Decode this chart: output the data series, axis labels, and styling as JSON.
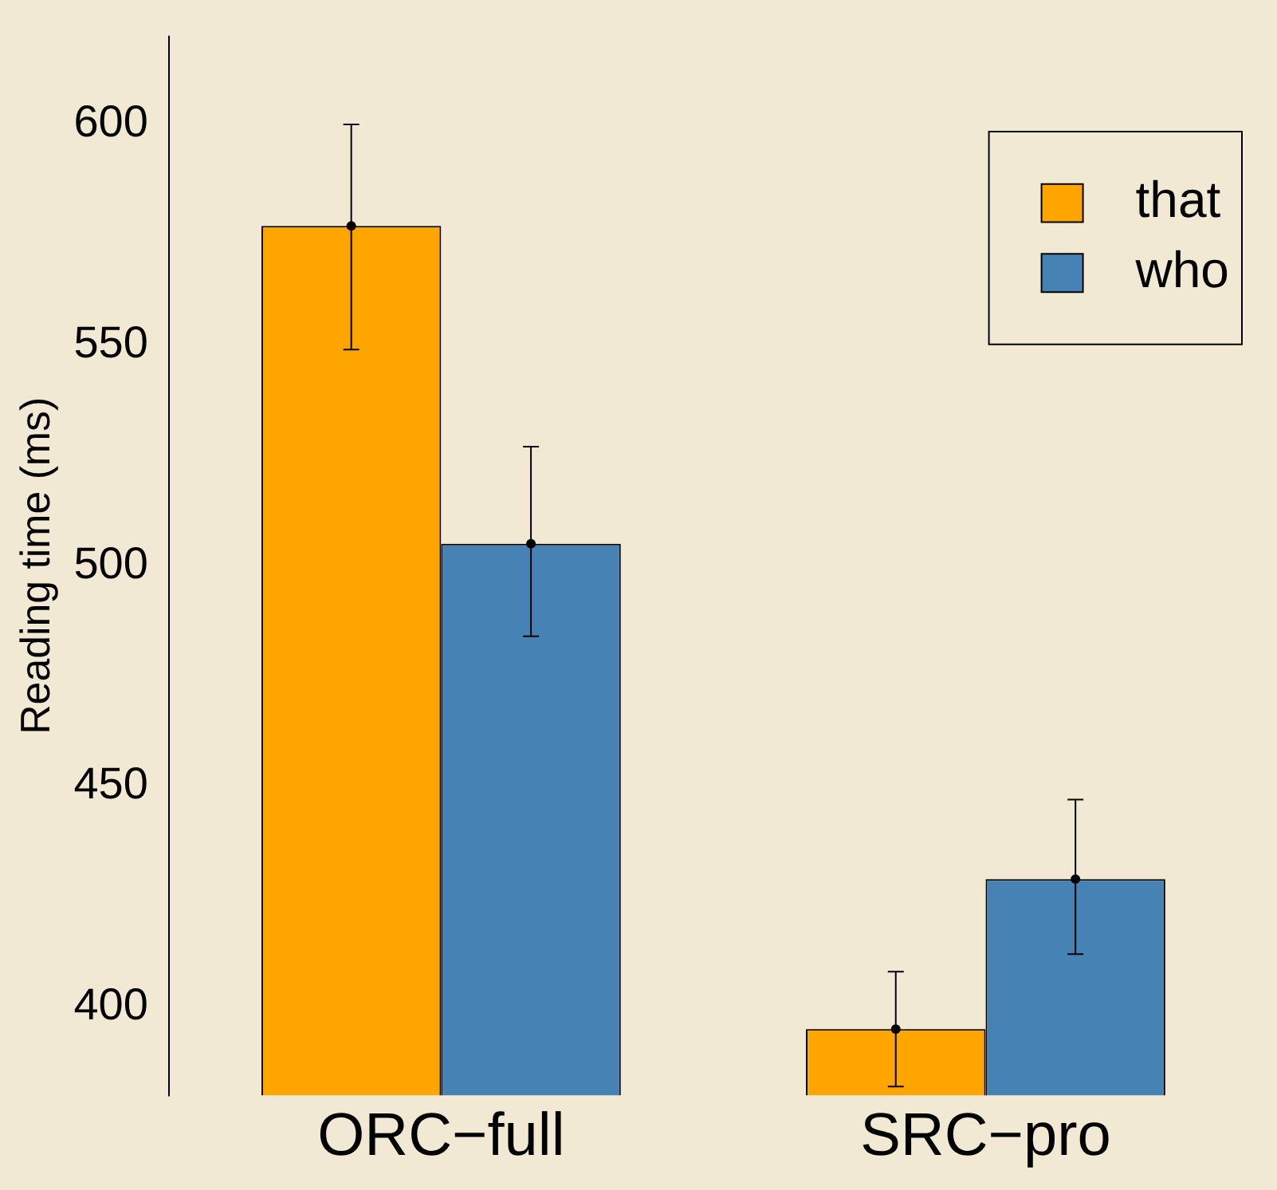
{
  "chart_data": {
    "type": "bar",
    "ylabel": "Reading time (ms)",
    "categories": [
      "ORC−full",
      "SRC−pro"
    ],
    "series": [
      {
        "name": "that",
        "color": "#ffa500",
        "values": [
          577,
          395
        ],
        "errors": [
          [
            549,
            600
          ],
          [
            382,
            408
          ]
        ]
      },
      {
        "name": "who",
        "color": "#4682b4",
        "values": [
          505,
          429
        ],
        "errors": [
          [
            484,
            527
          ],
          [
            412,
            447
          ]
        ]
      },
      {
        "type": "scatter",
        "color": "#000000",
        "x": [
          "ORC−full",
          "SRC−pro"
        ],
        "values": [
          577,
          395
        ],
        "marker": "circle"
      },
      {
        "type": "scatter",
        "color": "#000000",
        "x": [
          "ORC−full",
          "SRC−pro"
        ],
        "values": [
          505,
          429
        ],
        "marker": "circle"
      }
    ],
    "ylim": [
      380,
      620
    ],
    "yticks": [
      400,
      450,
      500,
      550,
      600
    ],
    "grid": false,
    "legend": "top right"
  }
}
